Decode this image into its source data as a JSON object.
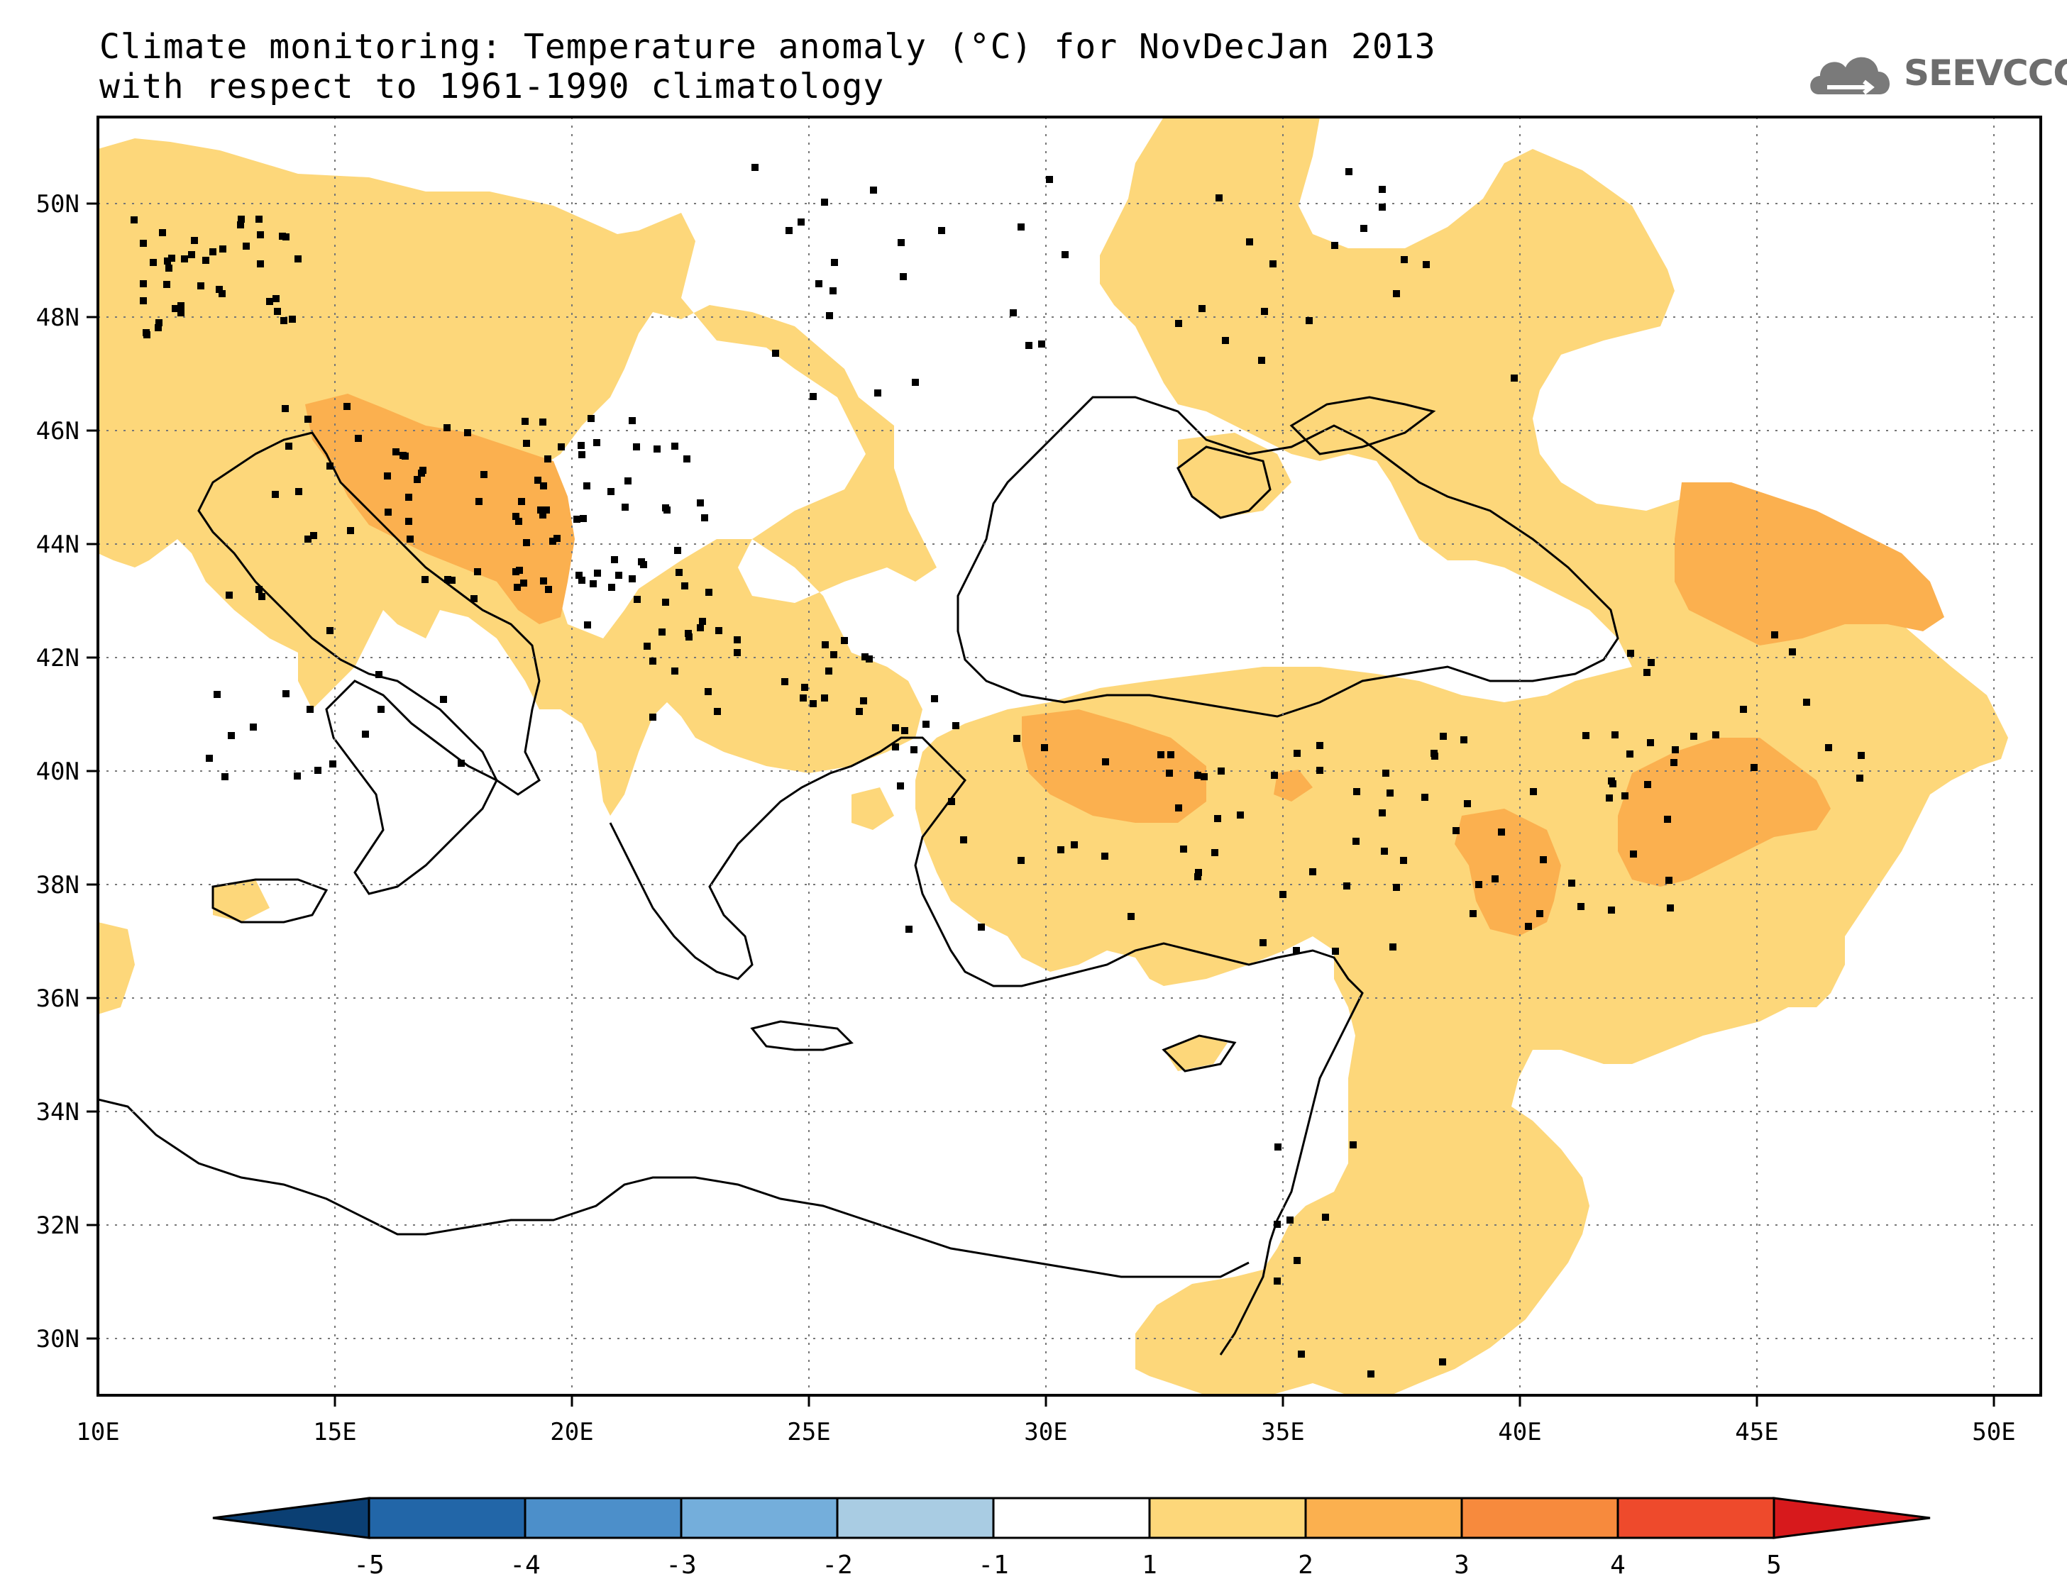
{
  "title": {
    "line1": "Climate monitoring: Temperature anomaly (°C) for NovDecJan 2013",
    "line2": "with respect to 1961-1990 climatology"
  },
  "logo": {
    "text": "SEEVCCC",
    "icon": "cloud-icon"
  },
  "map": {
    "lon_ticks": [
      "10E",
      "15E",
      "20E",
      "25E",
      "30E",
      "35E",
      "40E",
      "45E",
      "50E"
    ],
    "lat_ticks": [
      "50N",
      "48N",
      "46N",
      "44N",
      "42N",
      "40N",
      "38N",
      "36N",
      "34N",
      "32N",
      "30N"
    ]
  },
  "colorbar": {
    "labels": [
      "-5",
      "-4",
      "-3",
      "-2",
      "-1",
      "1",
      "2",
      "3",
      "4",
      "5"
    ],
    "colors": [
      "#0b3f73",
      "#2266a8",
      "#4c8fca",
      "#74aedb",
      "#a9cce3",
      "#ffffff",
      "#fdd77a",
      "#fbb04f",
      "#f78a3d",
      "#ee4a2c",
      "#d7191c"
    ]
  },
  "colors": {
    "anomaly_1_2": "#fdd77a",
    "anomaly_2_3": "#fbb04f",
    "coast": "#000000",
    "station": "#000000",
    "gridline": "#777777"
  }
}
